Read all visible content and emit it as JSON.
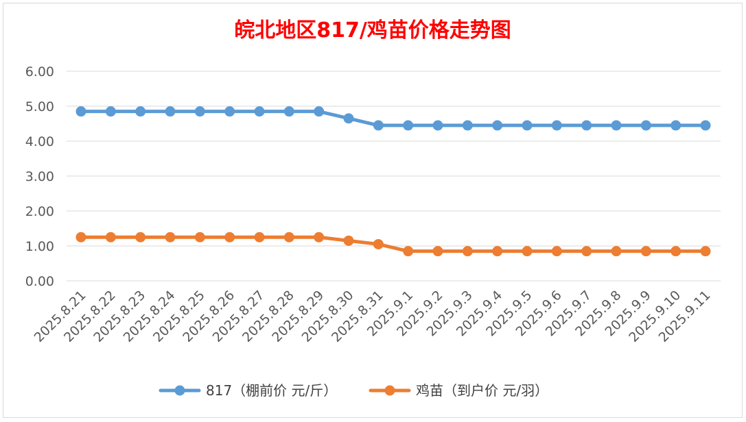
{
  "chart_data": {
    "type": "line",
    "title": "皖北地区817/鸡苗价格走势图",
    "xlabel": "",
    "ylabel": "",
    "ylim": [
      0,
      6
    ],
    "yticks": [
      "0.00",
      "1.00",
      "2.00",
      "3.00",
      "4.00",
      "5.00",
      "6.00"
    ],
    "grid": true,
    "legend_position": "bottom",
    "categories": [
      "2025.8.21",
      "2025.8.22",
      "2025.8.23",
      "2025.8.24",
      "2025.8.25",
      "2025.8.26",
      "2025.8.27",
      "2025.8.28",
      "2025.8.29",
      "2025.8.30",
      "2025.8.31",
      "2025.9.1",
      "2025.9.2",
      "2025.9.3",
      "2025.9.4",
      "2025.9.5",
      "2025.9.6",
      "2025.9.7",
      "2025.9.8",
      "2025.9.9",
      "2025.9.10",
      "2025.9.11"
    ],
    "series": [
      {
        "name": "817（棚前价 元/斤）",
        "color": "#5b9bd5",
        "values": [
          4.85,
          4.85,
          4.85,
          4.85,
          4.85,
          4.85,
          4.85,
          4.85,
          4.85,
          4.65,
          4.45,
          4.45,
          4.45,
          4.45,
          4.45,
          4.45,
          4.45,
          4.45,
          4.45,
          4.45,
          4.45,
          4.45
        ]
      },
      {
        "name": "鸡苗（到户价 元/羽）",
        "color": "#ed7d31",
        "values": [
          1.25,
          1.25,
          1.25,
          1.25,
          1.25,
          1.25,
          1.25,
          1.25,
          1.25,
          1.15,
          1.05,
          0.85,
          0.85,
          0.85,
          0.85,
          0.85,
          0.85,
          0.85,
          0.85,
          0.85,
          0.85,
          0.85
        ]
      }
    ]
  },
  "colors": {
    "title": "#ff0000",
    "gridline": "#d9d9d9"
  }
}
